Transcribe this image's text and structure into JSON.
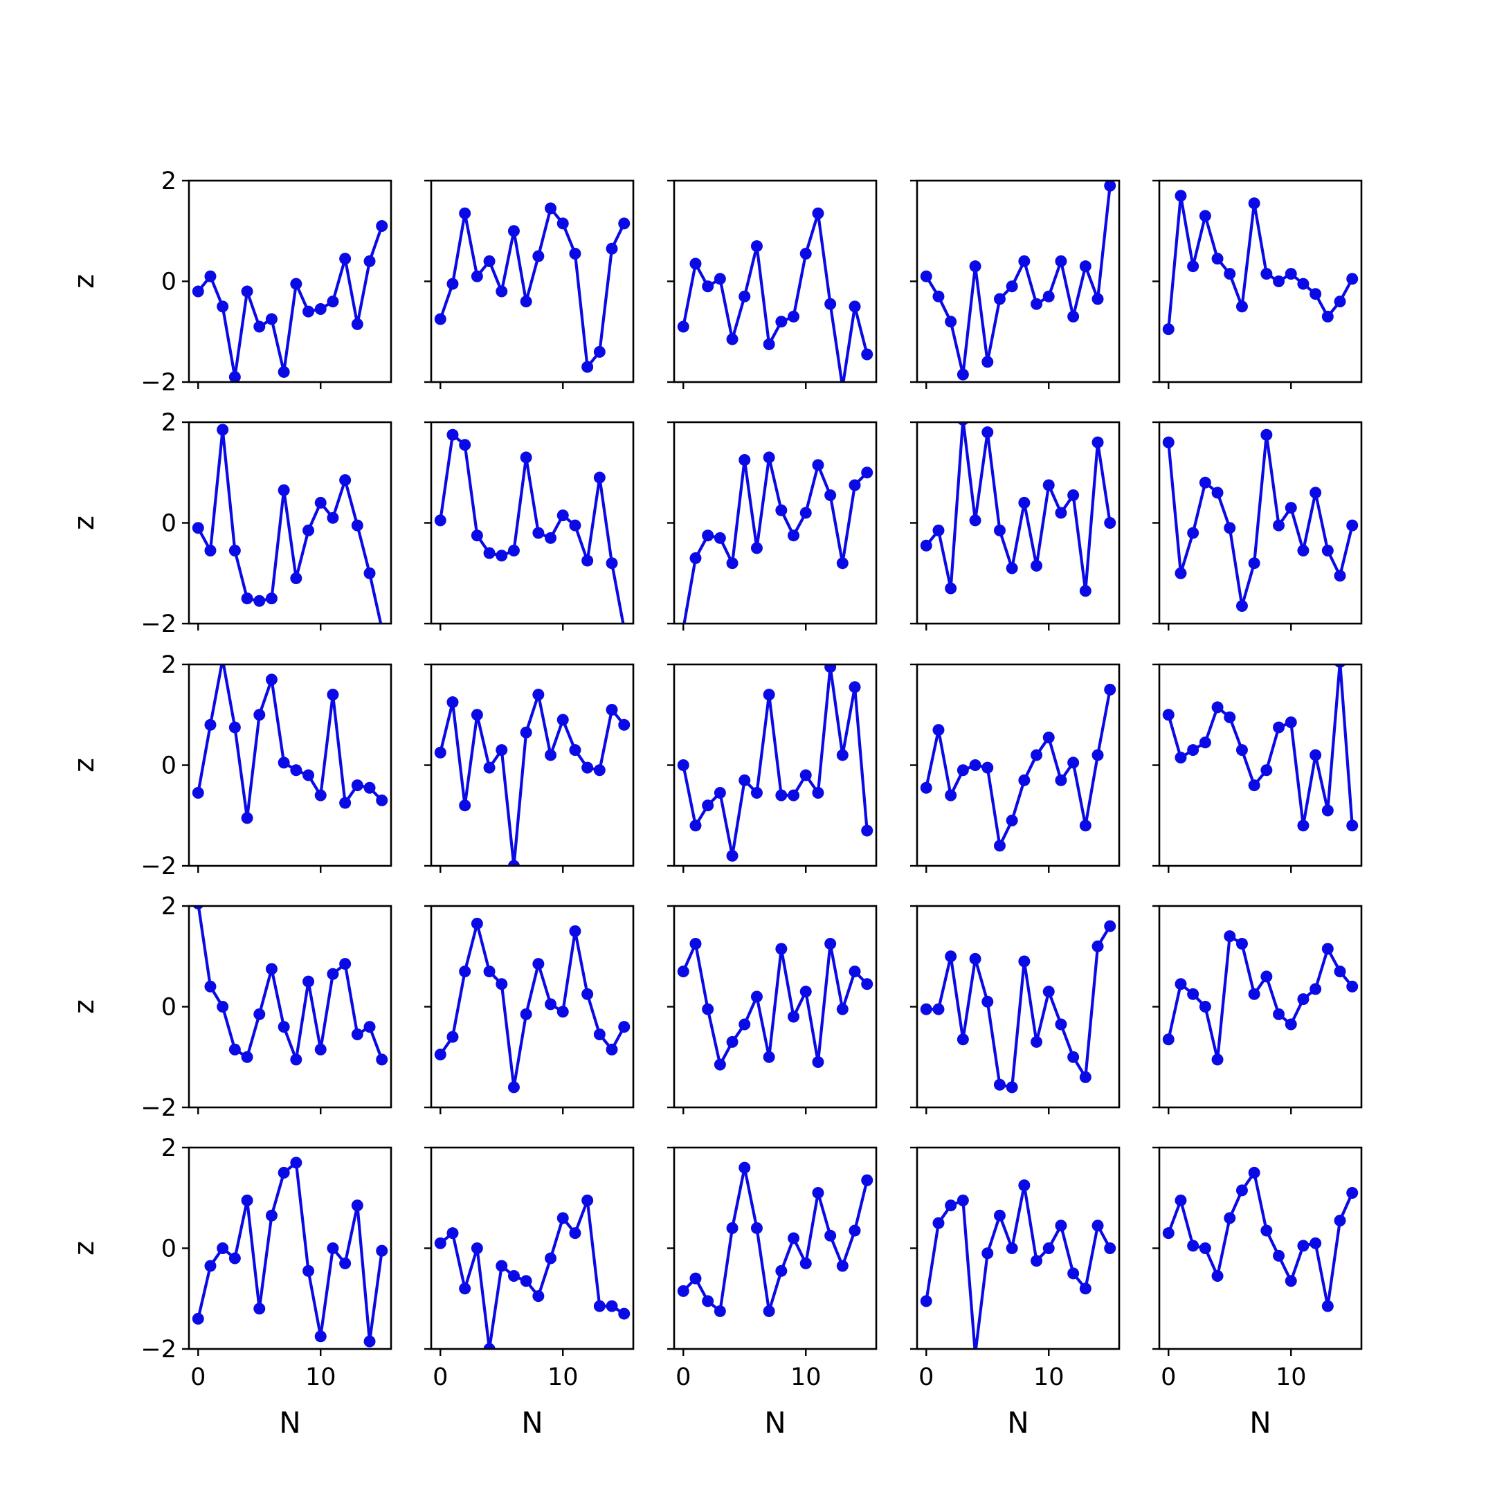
{
  "colors": {
    "line": "#0a0ae6",
    "axes": "#000000",
    "background": "#ffffff"
  },
  "chart_data": {
    "type": "line",
    "layout": "5x5 grid of small multiples, shared axes",
    "xlabel": "N",
    "ylabel": "z",
    "xlim": [
      -0.75,
      15.75
    ],
    "ylim": [
      -2,
      2
    ],
    "x_ticks": [
      0,
      10
    ],
    "x_tick_labels": [
      "0",
      "10"
    ],
    "y_ticks": [
      -2,
      0,
      2
    ],
    "y_tick_labels": [
      "−2",
      "0",
      "2"
    ],
    "grid": false,
    "x": [
      0,
      1,
      2,
      3,
      4,
      5,
      6,
      7,
      8,
      9,
      10,
      11,
      12,
      13,
      14,
      15
    ],
    "panels": [
      [
        -0.2,
        0.1,
        -0.5,
        -1.9,
        -0.2,
        -0.9,
        -0.75,
        -1.8,
        -0.05,
        -0.6,
        -0.55,
        -0.4,
        0.45,
        -0.85,
        0.4,
        1.1
      ],
      [
        -0.75,
        -0.05,
        1.35,
        0.1,
        0.4,
        -0.2,
        1.0,
        -0.4,
        0.5,
        1.45,
        1.15,
        0.55,
        -1.7,
        -1.4,
        0.65,
        1.15
      ],
      [
        -0.9,
        0.35,
        -0.1,
        0.05,
        -1.15,
        -0.3,
        0.7,
        -1.25,
        -0.8,
        -0.7,
        0.55,
        1.35,
        -0.45,
        -2.1,
        -0.5,
        -1.45
      ],
      [
        0.1,
        -0.3,
        -0.8,
        -1.85,
        0.3,
        -1.6,
        -0.35,
        -0.1,
        0.4,
        -0.45,
        -0.3,
        0.4,
        -0.7,
        0.3,
        -0.35,
        1.9
      ],
      [
        -0.95,
        1.7,
        0.3,
        1.3,
        0.45,
        0.15,
        -0.5,
        1.55,
        0.15,
        0.0,
        0.15,
        -0.05,
        -0.25,
        -0.7,
        -0.4,
        0.05
      ],
      [
        -0.1,
        -0.55,
        1.85,
        -0.55,
        -1.5,
        -1.55,
        -1.5,
        0.65,
        -1.1,
        -0.15,
        0.4,
        0.1,
        0.85,
        -0.05,
        -1.0,
        -2.1
      ],
      [
        0.05,
        1.75,
        1.55,
        -0.25,
        -0.6,
        -0.65,
        -0.55,
        1.3,
        -0.2,
        -0.3,
        0.15,
        -0.05,
        -0.75,
        0.9,
        -0.8,
        -2.1
      ],
      [
        -2.1,
        -0.7,
        -0.25,
        -0.3,
        -0.8,
        1.25,
        -0.5,
        1.3,
        0.25,
        -0.25,
        0.2,
        1.15,
        0.55,
        -0.8,
        0.75,
        1.0
      ],
      [
        -0.45,
        -0.15,
        -1.3,
        2.05,
        0.05,
        1.8,
        -0.15,
        -0.9,
        0.4,
        -0.85,
        0.75,
        0.2,
        0.55,
        -1.35,
        1.6,
        0.0
      ],
      [
        1.6,
        -1.0,
        -0.2,
        0.8,
        0.6,
        -0.1,
        -1.65,
        -0.8,
        1.75,
        -0.05,
        0.3,
        -0.55,
        0.6,
        -0.55,
        -1.05,
        -0.05
      ],
      [
        -0.55,
        0.8,
        2.1,
        0.75,
        -1.05,
        1.0,
        1.7,
        0.05,
        -0.1,
        -0.2,
        -0.6,
        1.4,
        -0.75,
        -0.4,
        -0.45,
        -0.7
      ],
      [
        0.25,
        1.25,
        -0.8,
        1.0,
        -0.05,
        0.3,
        -2.0,
        0.65,
        1.4,
        0.2,
        0.9,
        0.3,
        -0.05,
        -0.1,
        1.1,
        0.8
      ],
      [
        0.0,
        -1.2,
        -0.8,
        -0.55,
        -1.8,
        -0.3,
        -0.55,
        1.4,
        -0.6,
        -0.6,
        -0.2,
        -0.55,
        1.95,
        0.2,
        1.55,
        -1.3
      ],
      [
        -0.45,
        0.7,
        -0.6,
        -0.1,
        0.0,
        -0.05,
        -1.6,
        -1.1,
        -0.3,
        0.2,
        0.55,
        -0.3,
        0.05,
        -1.2,
        0.2,
        1.5
      ],
      [
        1.0,
        0.15,
        0.3,
        0.45,
        1.15,
        0.95,
        0.3,
        -0.4,
        -0.1,
        0.75,
        0.85,
        -1.2,
        0.2,
        -0.9,
        2.05,
        -1.2
      ],
      [
        2.05,
        0.4,
        0.0,
        -0.85,
        -1.0,
        -0.15,
        0.75,
        -0.4,
        -1.05,
        0.5,
        -0.85,
        0.65,
        0.85,
        -0.55,
        -0.4,
        -1.05
      ],
      [
        -0.95,
        -0.6,
        0.7,
        1.65,
        0.7,
        0.45,
        -1.6,
        -0.15,
        0.85,
        0.05,
        -0.1,
        1.5,
        0.25,
        -0.55,
        -0.85,
        -0.4
      ],
      [
        0.7,
        1.25,
        -0.05,
        -1.15,
        -0.7,
        -0.35,
        0.2,
        -1.0,
        1.15,
        -0.2,
        0.3,
        -1.1,
        1.25,
        -0.05,
        0.7,
        0.45
      ],
      [
        -0.05,
        -0.05,
        1.0,
        -0.65,
        0.95,
        0.1,
        -1.55,
        -1.6,
        0.9,
        -0.7,
        0.3,
        -0.35,
        -1.0,
        -1.4,
        1.2,
        1.6
      ],
      [
        -0.65,
        0.45,
        0.25,
        0.0,
        -1.05,
        1.4,
        1.25,
        0.25,
        0.6,
        -0.15,
        -0.35,
        0.15,
        0.35,
        1.15,
        0.7,
        0.4
      ],
      [
        -1.4,
        -0.35,
        0.0,
        -0.2,
        0.95,
        -1.2,
        0.65,
        1.5,
        1.7,
        -0.45,
        -1.75,
        0.0,
        -0.3,
        0.85,
        -1.85,
        -0.05
      ],
      [
        0.1,
        0.3,
        -0.8,
        0.0,
        -2.0,
        -0.35,
        -0.55,
        -0.65,
        -0.95,
        -0.2,
        0.6,
        0.3,
        0.95,
        -1.15,
        -1.15,
        -1.3
      ],
      [
        -0.85,
        -0.6,
        -1.05,
        -1.25,
        0.4,
        1.6,
        0.4,
        -1.25,
        -0.45,
        0.2,
        -0.3,
        1.1,
        0.25,
        -0.35,
        0.35,
        1.35
      ],
      [
        -1.05,
        0.5,
        0.85,
        0.95,
        -2.1,
        -0.1,
        0.65,
        0.0,
        1.25,
        -0.25,
        0.0,
        0.45,
        -0.5,
        -0.8,
        0.45,
        0.0
      ],
      [
        0.3,
        0.95,
        0.05,
        0.0,
        -0.55,
        0.6,
        1.15,
        1.5,
        0.35,
        -0.15,
        -0.65,
        0.05,
        0.1,
        -1.15,
        0.55,
        1.1
      ]
    ]
  }
}
